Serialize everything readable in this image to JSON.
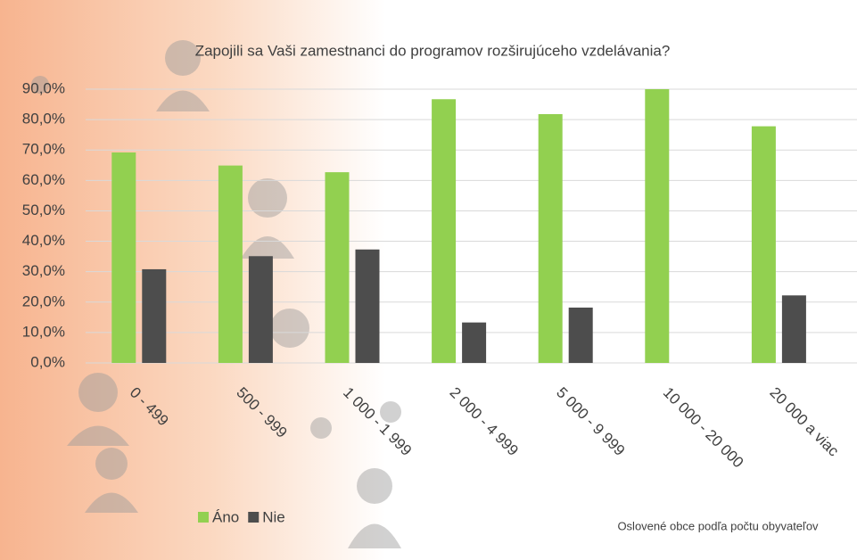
{
  "chart_data": {
    "type": "bar",
    "title": "Zapojili sa Vaši zamestnanci do programov rozširujúceho vzdelávania?",
    "x_label": "Oslovené obce podľa počtu obyvateľov",
    "categories": [
      "0 - 499",
      "500 - 999",
      "1 000 - 1 999",
      "2 000 - 4 999",
      "5 000 - 9 999",
      "10 000 - 20 000",
      "20 000 a viac"
    ],
    "series": [
      {
        "name": "Áno",
        "color": "#92d050",
        "values": [
          69.2,
          64.9,
          62.7,
          86.7,
          81.8,
          90.0,
          77.8
        ]
      },
      {
        "name": "Nie",
        "color": "#4d4d4d",
        "values": [
          30.8,
          35.1,
          37.3,
          13.3,
          18.2,
          0,
          22.2
        ]
      }
    ],
    "ylim": [
      0,
      90
    ],
    "yticks": [
      {
        "value": 0,
        "label": "0,0%"
      },
      {
        "value": 10,
        "label": "10,0%"
      },
      {
        "value": 20,
        "label": "20,0%"
      },
      {
        "value": 30,
        "label": "30,0%"
      },
      {
        "value": 40,
        "label": "40,0%"
      },
      {
        "value": 50,
        "label": "50,0%"
      },
      {
        "value": 60,
        "label": "60,0%"
      },
      {
        "value": 70,
        "label": "70,0%"
      },
      {
        "value": 80,
        "label": "80,0%"
      },
      {
        "value": 90,
        "label": "90,0%"
      }
    ],
    "grid": true
  }
}
